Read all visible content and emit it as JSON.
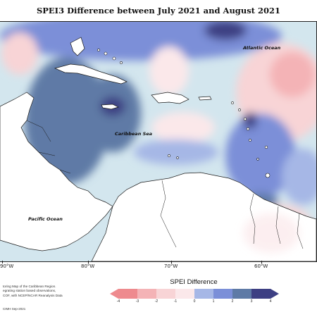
{
  "map": {
    "title": "SPEI3 Difference between July 2021 and August 2021",
    "labels": {
      "atlantic": "Atlantic Ocean",
      "caribbean": "Caribbean Sea",
      "pacific": "Pacific Ocean"
    },
    "longitude_labels": [
      "90°W",
      "80°W",
      "70°W",
      "60°W"
    ],
    "colors": {
      "land": "#ffffff",
      "coast": "#1a1a1a"
    }
  },
  "legend": {
    "title": "SPEI Difference",
    "tick_labels": [
      "-4",
      "-3",
      "-2",
      "-1",
      "0",
      "1",
      "2",
      "3",
      "4"
    ],
    "colors": [
      "#ee8a8e",
      "#f4b3b6",
      "#f8d4d6",
      "#fbe8ea",
      "#d3e6ee",
      "#a6b7e6",
      "#7b8fd8",
      "#5e7aa6",
      "#3d3f83"
    ]
  },
  "credits": {
    "lines": [
      "toring Map of the Caribbean Region.",
      "egrating station based observations,",
      "COF, with NCEP/NCAR Reanalysis Data"
    ],
    "date": "CIMH Sep-2021"
  }
}
